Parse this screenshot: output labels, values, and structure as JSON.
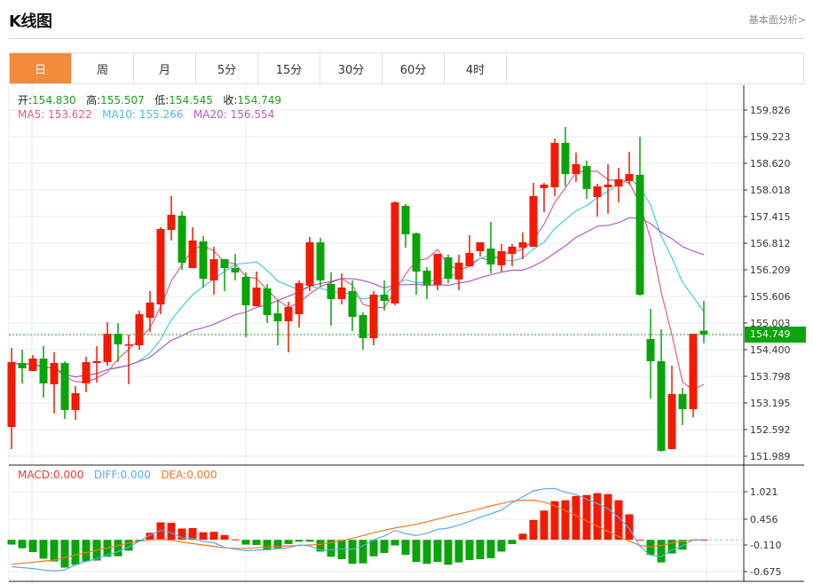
{
  "header": {
    "title": "K线图",
    "link": "基本面分析>"
  },
  "tabs": [
    {
      "label": "日",
      "active": true
    },
    {
      "label": "周"
    },
    {
      "label": "月"
    },
    {
      "label": "5分"
    },
    {
      "label": "15分"
    },
    {
      "label": "30分"
    },
    {
      "label": "60分"
    },
    {
      "label": "4时"
    }
  ],
  "ohlc_info": {
    "open_label": "开:",
    "open": "154.830",
    "high_label": "高:",
    "high": "155.507",
    "low_label": "低:",
    "low": "154.545",
    "close_label": "收:",
    "close": "154.749"
  },
  "ma_info": {
    "ma5": "MA5: 153.622",
    "ma10": "MA10: 155.266",
    "ma20": "MA20: 156.554"
  },
  "macd_info": {
    "macd": "MACD:0.000",
    "diff": "DIFF:0.000",
    "dea": "DEA:0.000"
  },
  "current_price": "154.749",
  "colors": {
    "up": "#f21a00",
    "down": "#08a408",
    "ma5": "#ea5a8c",
    "ma10": "#45cbe0",
    "ma20": "#b55ccc",
    "diff": "#5aaaf0",
    "dea": "#f5781e",
    "tab_active": "#f28c3c"
  },
  "chart_data": [
    {
      "type": "candlestick",
      "title": "K线图 日",
      "y_ticks": [
        "159.826",
        "159.223",
        "158.620",
        "158.018",
        "157.415",
        "156.812",
        "156.209",
        "155.606",
        "155.003",
        "154.400",
        "153.798",
        "153.195",
        "152.592",
        "151.989"
      ],
      "ylim": [
        151.989,
        159.826
      ],
      "candles": [
        [
          152.652,
          154.441,
          152.15,
          154.119
        ],
        [
          154.099,
          154.401,
          153.637,
          153.979
        ],
        [
          153.918,
          154.28,
          153.918,
          154.2
        ],
        [
          154.2,
          154.481,
          153.315,
          153.637
        ],
        [
          153.617,
          154.34,
          152.954,
          154.099
        ],
        [
          154.099,
          154.139,
          152.833,
          153.034
        ],
        [
          153.034,
          153.577,
          152.813,
          153.416
        ],
        [
          153.637,
          154.24,
          153.436,
          154.119
        ],
        [
          154.099,
          154.481,
          153.657,
          154.139
        ],
        [
          154.119,
          155.024,
          154.039,
          154.762
        ],
        [
          154.762,
          155.004,
          154.119,
          154.521
        ],
        [
          154.501,
          154.742,
          153.617,
          154.521
        ],
        [
          154.501,
          155.285,
          154.401,
          155.204
        ],
        [
          155.124,
          155.727,
          154.802,
          155.466
        ],
        [
          155.425,
          157.174,
          155.204,
          157.133
        ],
        [
          157.113,
          157.877,
          156.872,
          157.455
        ],
        [
          157.435,
          157.535,
          156.209,
          156.37
        ],
        [
          156.249,
          157.174,
          156.249,
          156.872
        ],
        [
          156.852,
          156.973,
          155.807,
          156.008
        ],
        [
          155.968,
          156.732,
          155.646,
          156.45
        ],
        [
          156.45,
          156.45,
          155.727,
          156.249
        ],
        [
          156.249,
          156.571,
          155.968,
          156.149
        ],
        [
          156.048,
          156.149,
          154.682,
          155.405
        ],
        [
          155.385,
          156.169,
          155.385,
          155.807
        ],
        [
          155.787,
          155.888,
          155.004,
          155.184
        ],
        [
          155.224,
          155.526,
          154.501,
          155.044
        ],
        [
          155.044,
          155.486,
          154.34,
          155.365
        ],
        [
          155.204,
          155.968,
          154.903,
          155.908
        ],
        [
          155.847,
          156.953,
          155.727,
          156.832
        ],
        [
          156.832,
          156.933,
          155.827,
          155.968
        ],
        [
          155.888,
          156.149,
          154.943,
          155.546
        ],
        [
          155.546,
          156.129,
          155.425,
          155.807
        ],
        [
          155.727,
          155.968,
          154.823,
          155.144
        ],
        [
          155.184,
          155.245,
          154.401,
          154.662
        ],
        [
          154.662,
          155.727,
          154.501,
          155.646
        ],
        [
          155.646,
          155.968,
          155.285,
          155.506
        ],
        [
          155.446,
          157.756,
          155.405,
          157.736
        ],
        [
          157.656,
          157.696,
          156.711,
          157.013
        ],
        [
          157.033,
          157.053,
          155.646,
          156.169
        ],
        [
          156.189,
          156.269,
          155.546,
          155.868
        ],
        [
          155.868,
          156.571,
          155.747,
          156.571
        ],
        [
          156.49,
          156.551,
          155.908,
          156.008
        ],
        [
          155.988,
          156.551,
          155.747,
          156.37
        ],
        [
          156.289,
          156.993,
          156.289,
          156.591
        ],
        [
          156.631,
          156.832,
          156.511,
          156.832
        ],
        [
          156.691,
          157.294,
          156.129,
          156.33
        ],
        [
          156.31,
          156.792,
          156.169,
          156.631
        ],
        [
          156.571,
          156.792,
          156.289,
          156.732
        ],
        [
          156.711,
          157.053,
          156.45,
          156.832
        ],
        [
          156.732,
          158.178,
          156.732,
          157.877
        ],
        [
          158.058,
          158.178,
          157.515,
          158.138
        ],
        [
          158.078,
          159.183,
          157.877,
          159.083
        ],
        [
          159.083,
          159.444,
          158.098,
          158.379
        ],
        [
          158.379,
          158.862,
          158.199,
          158.6
        ],
        [
          158.56,
          158.681,
          157.817,
          158.038
        ],
        [
          157.857,
          158.158,
          157.415,
          158.098
        ],
        [
          158.078,
          158.6,
          157.475,
          158.138
        ],
        [
          158.098,
          158.52,
          157.736,
          158.259
        ],
        [
          158.219,
          158.882,
          158.138,
          158.379
        ],
        [
          158.359,
          159.223,
          155.626,
          155.646
        ],
        [
          154.642,
          155.325,
          153.295,
          154.139
        ],
        [
          154.139,
          154.863,
          152.09,
          152.11
        ],
        [
          152.15,
          154.039,
          152.15,
          153.396
        ],
        [
          153.396,
          153.536,
          152.693,
          153.054
        ],
        [
          153.054,
          154.762,
          152.873,
          154.762
        ],
        [
          154.83,
          155.507,
          154.545,
          154.749
        ]
      ],
      "candle_fields": [
        "open",
        "high",
        "low",
        "close"
      ],
      "moving_averages": [
        "MA5",
        "MA10",
        "MA20"
      ]
    },
    {
      "type": "macd",
      "y_ticks": [
        "1.021",
        "0.456",
        "-0.110",
        "-0.675"
      ],
      "ylim": [
        -0.75,
        1.2
      ],
      "histogram": [
        -0.1,
        -0.18,
        -0.26,
        -0.4,
        -0.46,
        -0.59,
        -0.53,
        -0.46,
        -0.44,
        -0.36,
        -0.35,
        -0.23,
        -0.03,
        0.15,
        0.37,
        0.36,
        0.24,
        0.25,
        0.16,
        0.17,
        0.1,
        0.01,
        -0.1,
        -0.11,
        -0.22,
        -0.18,
        -0.09,
        -0.04,
        -0.04,
        -0.25,
        -0.36,
        -0.41,
        -0.51,
        -0.5,
        -0.35,
        -0.28,
        -0.12,
        -0.32,
        -0.47,
        -0.51,
        -0.47,
        -0.53,
        -0.48,
        -0.43,
        -0.41,
        -0.39,
        -0.25,
        -0.09,
        0.13,
        0.42,
        0.62,
        0.82,
        0.84,
        0.93,
        0.95,
        0.99,
        0.97,
        0.84,
        0.54,
        0.0,
        -0.32,
        -0.48,
        -0.29,
        -0.21,
        0.0,
        0.0
      ],
      "diff": [
        -0.57,
        -0.59,
        -0.61,
        -0.64,
        -0.66,
        -0.64,
        -0.53,
        -0.46,
        -0.4,
        -0.32,
        -0.25,
        -0.15,
        -0.03,
        0.1,
        0.2,
        0.15,
        0.04,
        0.03,
        -0.04,
        -0.06,
        -0.16,
        -0.2,
        -0.23,
        -0.22,
        -0.21,
        -0.19,
        -0.17,
        -0.11,
        -0.13,
        -0.22,
        -0.21,
        -0.2,
        -0.2,
        -0.13,
        0.0,
        0.08,
        0.2,
        0.13,
        0.09,
        0.14,
        0.22,
        0.25,
        0.31,
        0.39,
        0.48,
        0.55,
        0.63,
        0.79,
        0.91,
        1.04,
        1.08,
        1.09,
        1.01,
        0.96,
        0.86,
        0.77,
        0.66,
        0.48,
        0.24,
        -0.14,
        -0.33,
        -0.36,
        -0.21,
        -0.13,
        0.0,
        0.0
      ],
      "dea": [
        -0.52,
        -0.5,
        -0.48,
        -0.45,
        -0.43,
        -0.38,
        -0.32,
        -0.27,
        -0.22,
        -0.17,
        -0.12,
        -0.07,
        -0.03,
        0.0,
        0.01,
        -0.01,
        -0.05,
        -0.08,
        -0.11,
        -0.14,
        -0.17,
        -0.18,
        -0.18,
        -0.17,
        -0.15,
        -0.14,
        -0.13,
        -0.12,
        -0.11,
        -0.1,
        -0.06,
        -0.02,
        0.03,
        0.09,
        0.15,
        0.2,
        0.25,
        0.29,
        0.33,
        0.38,
        0.44,
        0.5,
        0.55,
        0.6,
        0.66,
        0.72,
        0.77,
        0.82,
        0.84,
        0.84,
        0.8,
        0.72,
        0.62,
        0.51,
        0.4,
        0.29,
        0.18,
        0.07,
        -0.03,
        -0.12,
        -0.15,
        -0.12,
        -0.07,
        -0.03,
        0.0,
        0.0
      ]
    }
  ]
}
